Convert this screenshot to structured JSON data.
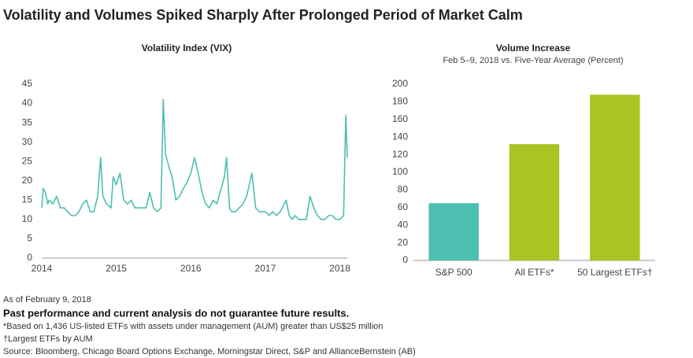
{
  "title": "Volatility and Volumes Spiked Sharply After Prolonged Period of Market Calm",
  "chart_data": [
    {
      "type": "line",
      "title": "Volatility Index (VIX)",
      "x": [
        2014.0,
        2014.02,
        2014.05,
        2014.08,
        2014.1,
        2014.15,
        2014.2,
        2014.25,
        2014.3,
        2014.35,
        2014.4,
        2014.45,
        2014.5,
        2014.55,
        2014.6,
        2014.65,
        2014.7,
        2014.75,
        2014.79,
        2014.82,
        2014.87,
        2014.93,
        2014.96,
        2015.0,
        2015.05,
        2015.1,
        2015.15,
        2015.2,
        2015.25,
        2015.3,
        2015.35,
        2015.4,
        2015.45,
        2015.5,
        2015.55,
        2015.6,
        2015.63,
        2015.66,
        2015.7,
        2015.75,
        2015.8,
        2015.85,
        2015.9,
        2015.96,
        2016.0,
        2016.05,
        2016.1,
        2016.15,
        2016.2,
        2016.25,
        2016.3,
        2016.35,
        2016.45,
        2016.48,
        2016.52,
        2016.55,
        2016.6,
        2016.7,
        2016.75,
        2016.82,
        2016.87,
        2016.92,
        2016.97,
        2017.0,
        2017.05,
        2017.1,
        2017.15,
        2017.2,
        2017.28,
        2017.32,
        2017.36,
        2017.4,
        2017.45,
        2017.55,
        2017.6,
        2017.65,
        2017.7,
        2017.75,
        2017.8,
        2017.85,
        2017.9,
        2017.95,
        2018.0,
        2018.05,
        2018.08,
        2018.1
      ],
      "series": [
        {
          "name": "VIX",
          "color": "#4dbfb0",
          "values": [
            13,
            18,
            17,
            14,
            15,
            14,
            16,
            13,
            13,
            12,
            11,
            11,
            12,
            14,
            15,
            12,
            12,
            16,
            26,
            16,
            14,
            13,
            21,
            19,
            22,
            15,
            14,
            15,
            13,
            13,
            13,
            13,
            17,
            13,
            12,
            13,
            41,
            27,
            24,
            21,
            15,
            16,
            18,
            20,
            22,
            26,
            22,
            17,
            14,
            13,
            15,
            14,
            21,
            26,
            13,
            12,
            12,
            14,
            16,
            22,
            13,
            12,
            12,
            12,
            11,
            12,
            11,
            12,
            15,
            11,
            10,
            11,
            10,
            10,
            16,
            13,
            11,
            10,
            10,
            11,
            11,
            10,
            10,
            11,
            37,
            26
          ]
        }
      ],
      "xlim": [
        2014,
        2018.1
      ],
      "xticks": [
        2014,
        2015,
        2016,
        2017,
        2018
      ],
      "ylim": [
        0,
        45
      ],
      "yticks": [
        0,
        5,
        10,
        15,
        20,
        25,
        30,
        35,
        40,
        45
      ]
    },
    {
      "type": "bar",
      "title": "Volume Increase",
      "subtitle": "Feb 5–9, 2018 vs. Five-Year Average (Percent)",
      "categories": [
        "S&P 500",
        "All ETFs*",
        "50 Largest ETFs†"
      ],
      "values": [
        65,
        132,
        188
      ],
      "colors": [
        "#4dbfb0",
        "#a8c523",
        "#a8c523"
      ],
      "ylim": [
        0,
        200
      ],
      "yticks": [
        0,
        20,
        40,
        60,
        80,
        100,
        120,
        140,
        160,
        180,
        200
      ]
    }
  ],
  "notes": [
    "As of February 9, 2018",
    "Past performance and current analysis do not guarantee future results.",
    "*Based on 1,436 US-listed ETFs with assets under management (AUM) greater than US$25 million",
    "†Largest ETFs by AUM",
    "Source: Bloomberg, Chicago Board Options Exchange, Morningstar Direct, S&P and AllianceBernstein (AB)"
  ]
}
